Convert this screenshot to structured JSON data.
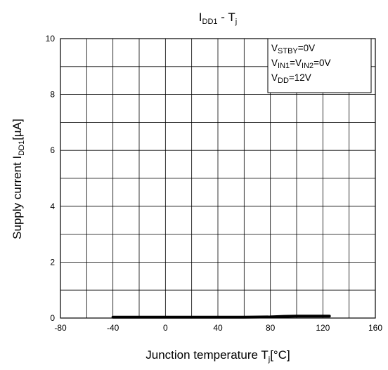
{
  "chart_data": {
    "type": "line",
    "title": {
      "main": "I",
      "main_sub": "DD1",
      "rest": " - T",
      "rest_sub": "j"
    },
    "xlabel": {
      "main": "Junction temperature T",
      "sub": "j",
      "rest": "[°C]"
    },
    "ylabel": {
      "main": "Supply current I",
      "sub": "DD1",
      "rest": "[µA]"
    },
    "xlim": [
      -80,
      160
    ],
    "ylim": [
      0,
      10
    ],
    "x_ticks": [
      -80,
      -40,
      0,
      40,
      80,
      120,
      160
    ],
    "y_ticks": [
      0,
      2,
      4,
      6,
      8,
      10
    ],
    "x_ticks_text": [
      "-80",
      "-40",
      "0",
      "40",
      "80",
      "120",
      "160"
    ],
    "y_ticks_text": [
      "0",
      "2",
      "4",
      "6",
      "8",
      "10"
    ],
    "x_minor_step": 20,
    "y_minor_step": 1,
    "grid": true,
    "legend_box": {
      "placement": "top-right",
      "lines": [
        {
          "main": "V",
          "sub": "STBY",
          "rest": "=0V"
        },
        {
          "main": "V",
          "sub": "IN1",
          "rest": "=V",
          "sub2": "IN2",
          "rest2": "=0V"
        },
        {
          "main": "V",
          "sub": "DD",
          "rest": "=12V"
        }
      ]
    },
    "series": [
      {
        "color": "#000000",
        "x": [
          -40,
          -20,
          0,
          20,
          40,
          60,
          80,
          90,
          100,
          110,
          125
        ],
        "y": [
          0.03,
          0.03,
          0.03,
          0.03,
          0.03,
          0.03,
          0.04,
          0.06,
          0.07,
          0.07,
          0.07
        ]
      }
    ]
  }
}
